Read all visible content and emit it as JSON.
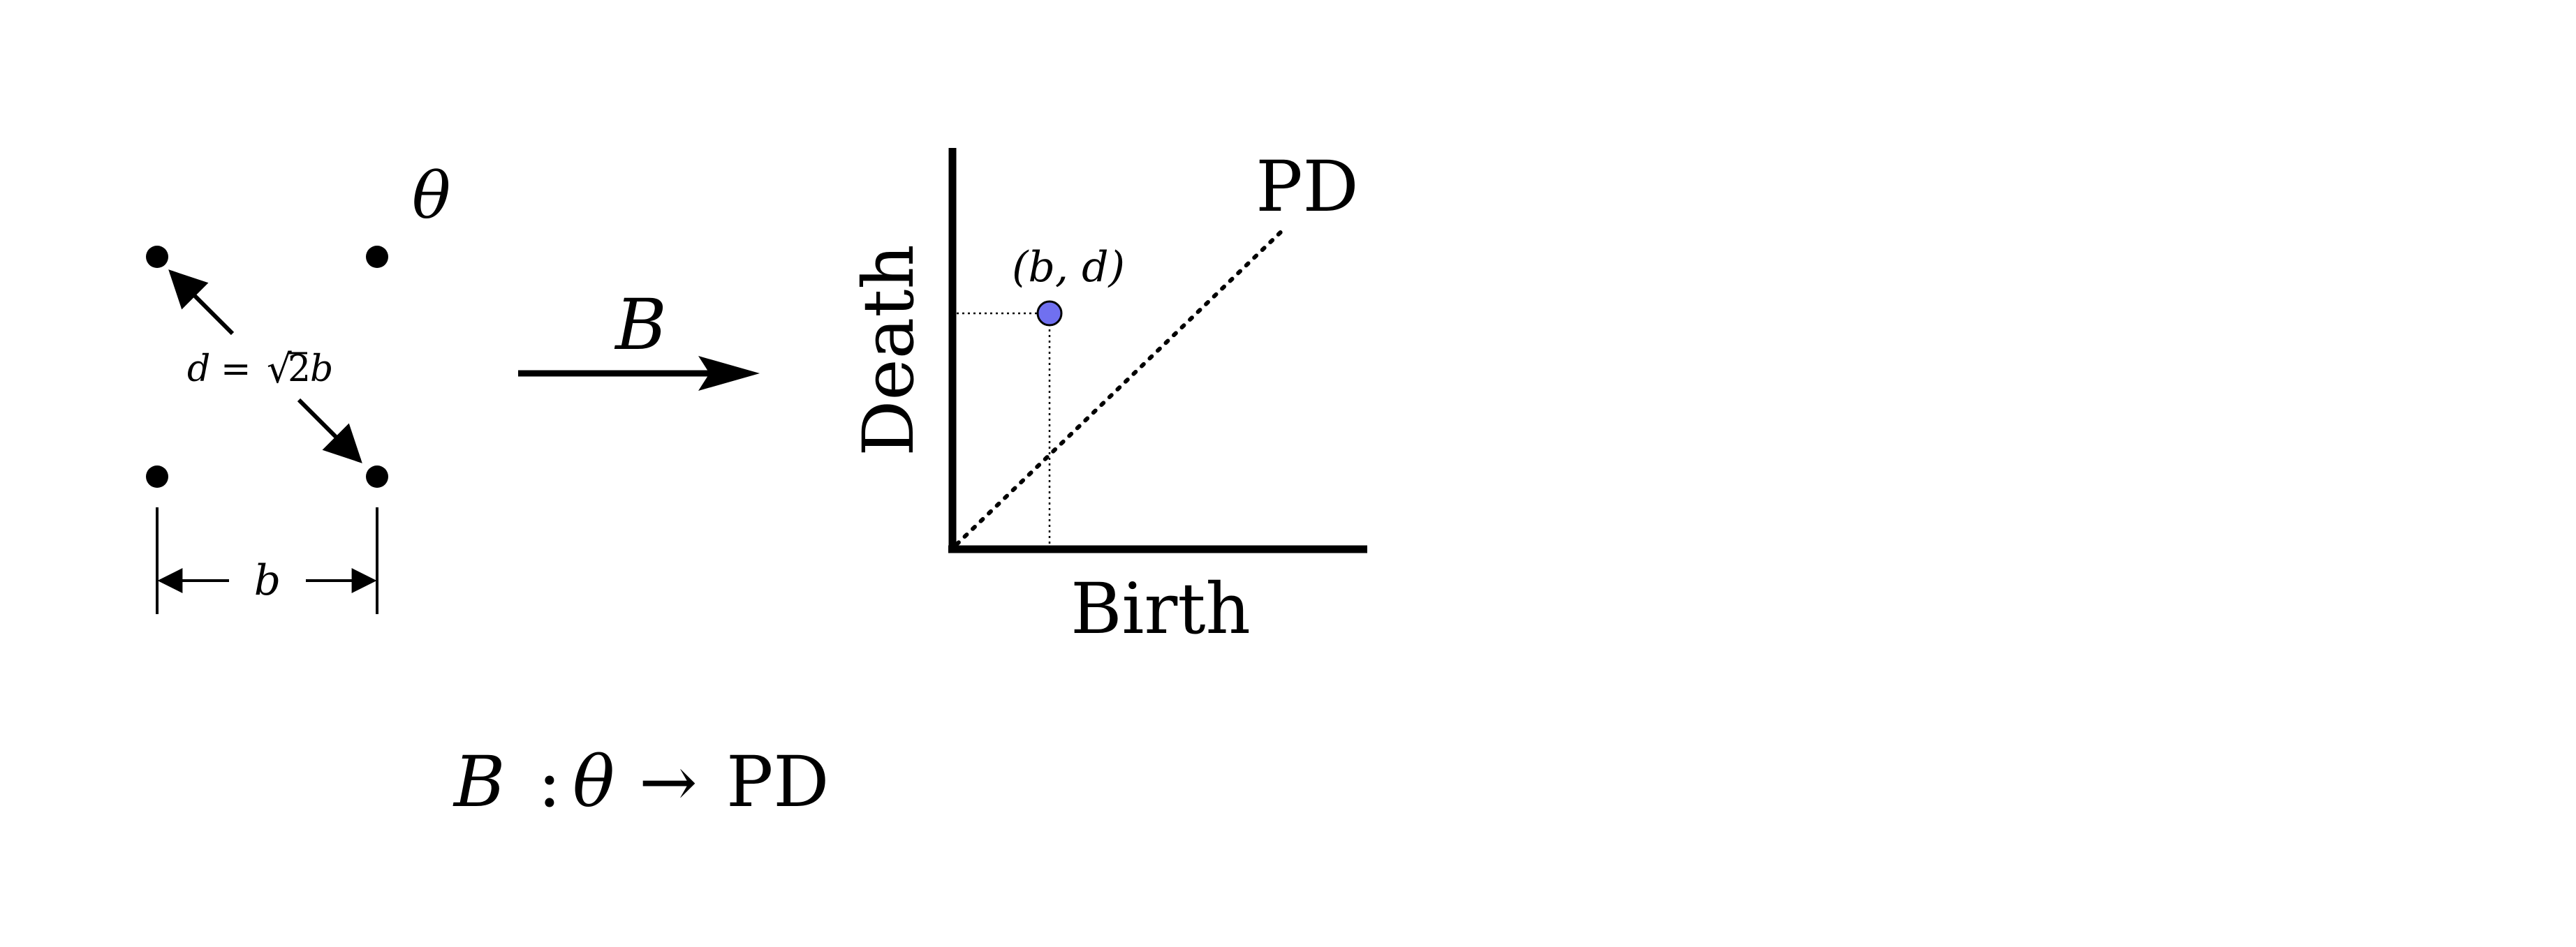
{
  "point_cloud": {
    "label": "θ",
    "distance_label": {
      "lhs": "d",
      "equals": "=",
      "sqrt_sign": "√",
      "radicand": "2",
      "var": "b"
    },
    "width_label": "b"
  },
  "map_arrow": {
    "label": "B"
  },
  "persistence_diagram": {
    "label": "PD",
    "point_label": "(b, d)",
    "x_axis_label": "Birth",
    "y_axis_label": "Death",
    "point_color": "#7070f0"
  },
  "formula": {
    "map": "B",
    "colon": ":",
    "domain": "θ",
    "arrow": "→",
    "codomain": "PD"
  }
}
